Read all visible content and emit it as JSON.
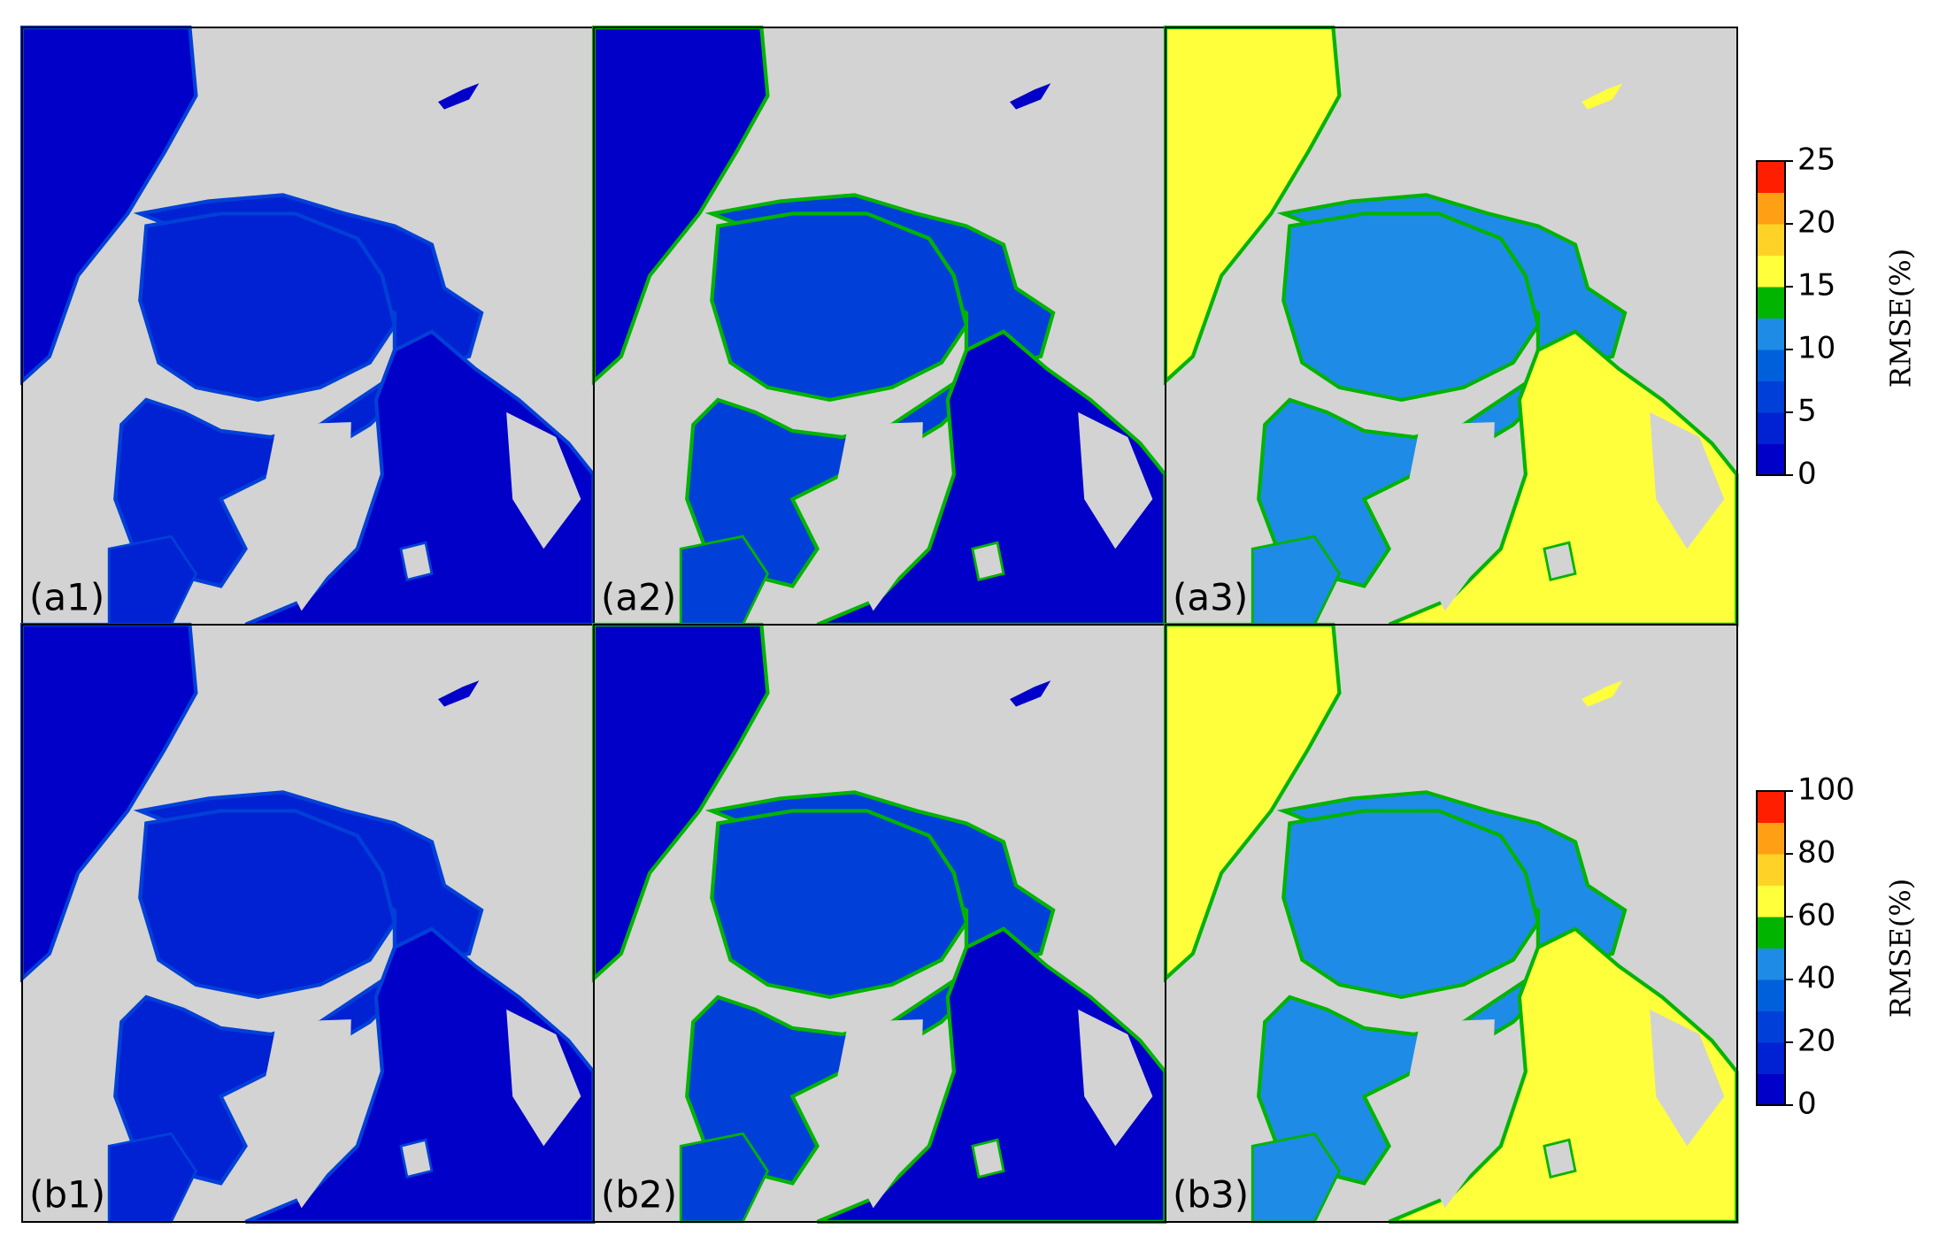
{
  "panels": [
    {
      "label": "(a1)"
    },
    {
      "label": "(a2)"
    },
    {
      "label": "(a3)"
    },
    {
      "label": "(b1)"
    },
    {
      "label": "(b2)"
    },
    {
      "label": "(b3)"
    }
  ],
  "colorbars": [
    {
      "label": "RMSE(%)",
      "lim": [
        0,
        25
      ],
      "ticks": [
        0,
        5,
        10,
        15,
        20,
        25
      ]
    },
    {
      "label": "RMSE(%)",
      "lim": [
        0,
        100
      ],
      "ticks": [
        0,
        20,
        40,
        60,
        80,
        100
      ]
    }
  ],
  "colormap": [
    "#0000c8",
    "#0022d2",
    "#0040d8",
    "#0060dc",
    "#1e8ce6",
    "#00b400",
    "#ffff3c",
    "#ffd228",
    "#ffa014",
    "#ff1e00"
  ]
}
